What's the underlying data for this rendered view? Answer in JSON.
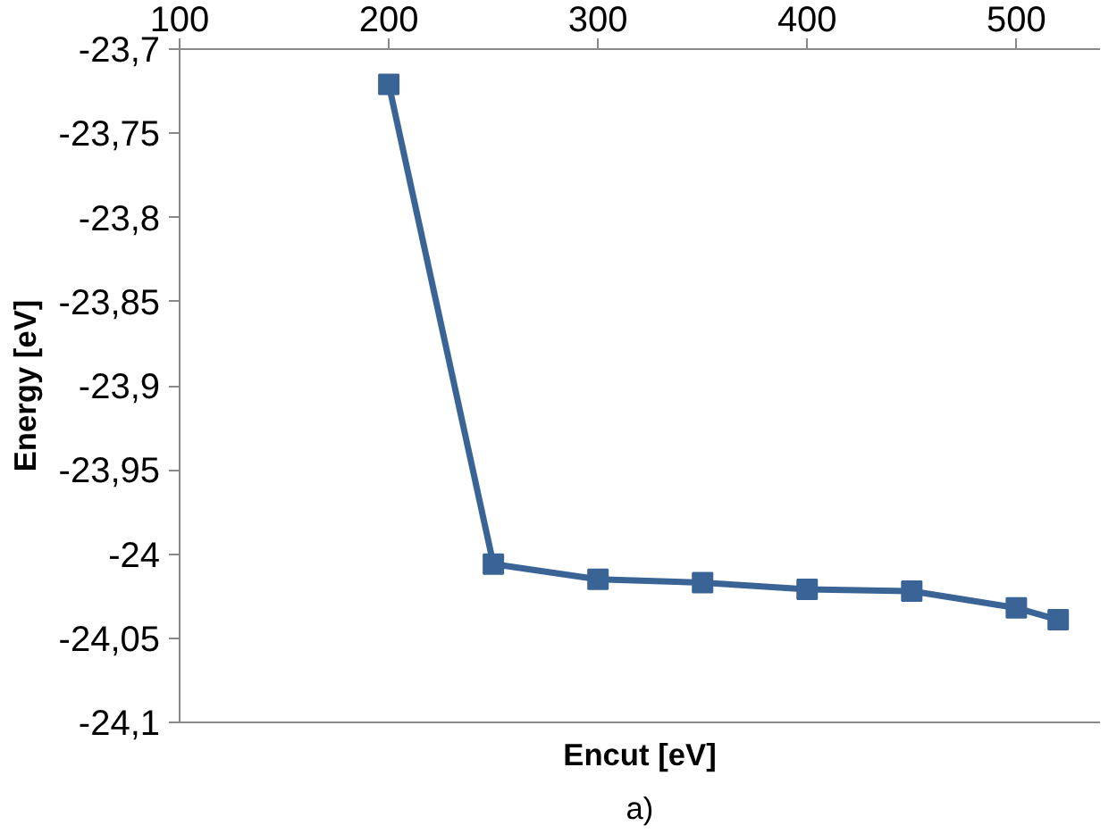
{
  "chart_data": {
    "type": "line",
    "xlabel": "Encut [eV]",
    "ylabel": "Energy [eV]",
    "annotations": [
      "a)"
    ],
    "x": [
      200,
      250,
      300,
      350,
      400,
      450,
      500,
      520
    ],
    "series": [
      {
        "color": "#3a6496",
        "values": [
          -23.721,
          -24.006,
          -24.015,
          -24.017,
          -24.021,
          -24.022,
          -24.032,
          -24.039
        ]
      }
    ],
    "xlim": [
      100,
      540
    ],
    "xticks": [
      100,
      200,
      300,
      400,
      500
    ],
    "ylim": [
      -24.1,
      -23.7
    ],
    "yticks": [
      {
        "value": -23.7,
        "label": "-23,7"
      },
      {
        "value": -23.75,
        "label": "-23,75"
      },
      {
        "value": -23.8,
        "label": "-23,8"
      },
      {
        "value": -23.85,
        "label": "-23,85"
      },
      {
        "value": -23.9,
        "label": "-23,9"
      },
      {
        "value": -23.95,
        "label": "-23,95"
      },
      {
        "value": -24.0,
        "label": "-24"
      },
      {
        "value": -24.05,
        "label": "-24,05"
      },
      {
        "value": -24.1,
        "label": "-24,1"
      }
    ],
    "grid": false,
    "marker": "square",
    "line_style": "solid"
  }
}
